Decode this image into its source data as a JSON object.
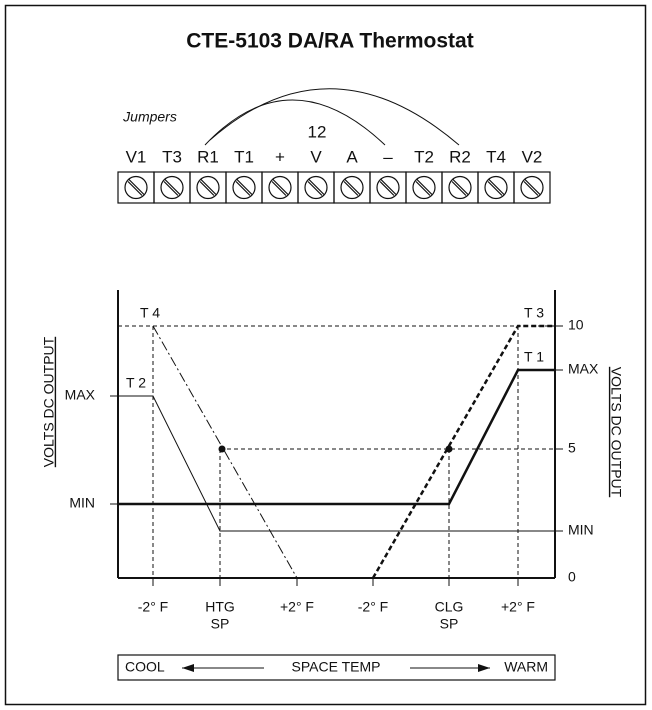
{
  "title": "CTE-5103 DA/RA Thermostat",
  "jumpers_label": "Jumpers",
  "supply_voltage": "12",
  "terminals": [
    "V1",
    "T3",
    "R1",
    "T1",
    "+",
    "V",
    "A",
    "–",
    "T2",
    "R2",
    "T4",
    "V2"
  ],
  "graph": {
    "left_axis_title": "VOLTS DC OUTPUT",
    "right_axis_title": "VOLTS DC OUTPUT",
    "left_levels": [
      "MAX",
      "MIN"
    ],
    "right_levels": [
      "10",
      "MAX",
      "5",
      "MIN",
      "0"
    ],
    "curve_labels": [
      "T 4",
      "T 2",
      "T 3",
      "T 1"
    ],
    "x_labels": [
      [
        "-2° F"
      ],
      [
        "HTG",
        "SP"
      ],
      [
        "+2° F"
      ],
      [
        "-2° F"
      ],
      [
        "CLG",
        "SP"
      ],
      [
        "+2° F"
      ]
    ]
  },
  "scale_bar": {
    "left": "COOL",
    "center": "SPACE TEMP",
    "right": "WARM"
  }
}
